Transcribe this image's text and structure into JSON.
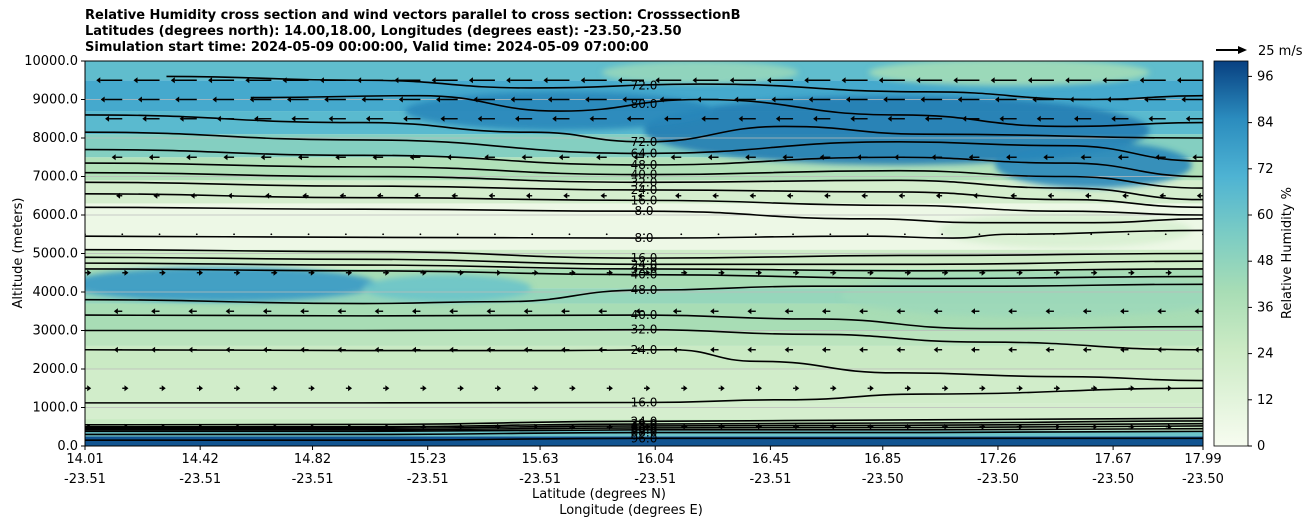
{
  "chart_data": {
    "type": "heatmap",
    "title_lines": [
      "Relative Humidity cross section and wind vectors parallel to cross section: CrosssectionB",
      "Latitudes (degrees north): 14.00,18.00, Longitudes (degrees east): -23.50,-23.50",
      "Simulation start time: 2024-05-09 00:00:00, Valid time: 2024-05-09 07:00:00"
    ],
    "xlabel_lat": "Latitude (degrees N)",
    "xlabel_lon": "Longitude (degrees E)",
    "ylabel": "Altitude (meters)",
    "xlim": [
      14.01,
      17.99
    ],
    "ylim": [
      0,
      10000
    ],
    "x_ticks": [
      {
        "lat": "14.01",
        "lon": "-23.51",
        "x": 14.01
      },
      {
        "lat": "14.42",
        "lon": "-23.51",
        "x": 14.42
      },
      {
        "lat": "14.82",
        "lon": "-23.51",
        "x": 14.82
      },
      {
        "lat": "15.23",
        "lon": "-23.51",
        "x": 15.23
      },
      {
        "lat": "15.63",
        "lon": "-23.51",
        "x": 15.63
      },
      {
        "lat": "16.04",
        "lon": "-23.51",
        "x": 16.04
      },
      {
        "lat": "16.45",
        "lon": "-23.51",
        "x": 16.45
      },
      {
        "lat": "16.85",
        "lon": "-23.50",
        "x": 16.85
      },
      {
        "lat": "17.26",
        "lon": "-23.50",
        "x": 17.26
      },
      {
        "lat": "17.67",
        "lon": "-23.50",
        "x": 17.67
      },
      {
        "lat": "17.99",
        "lon": "-23.50",
        "x": 17.99
      }
    ],
    "y_ticks": [
      "0.0",
      "1000.0",
      "2000.0",
      "3000.0",
      "4000.0",
      "5000.0",
      "6000.0",
      "7000.0",
      "8000.0",
      "9000.0",
      "10000.0"
    ],
    "colorbar": {
      "label": "Relative Humidity %",
      "ticks": [
        "0",
        "12",
        "24",
        "36",
        "48",
        "60",
        "72",
        "84",
        "96"
      ],
      "min": 0,
      "max": 100
    },
    "wind_key": "25 m/s",
    "layers": [
      {
        "y0": 0,
        "y1": 250,
        "rh": 96
      },
      {
        "y0": 250,
        "y1": 400,
        "rh": 60
      },
      {
        "y0": 400,
        "y1": 700,
        "rh": 26
      },
      {
        "y0": 700,
        "y1": 1100,
        "rh": 20
      },
      {
        "y0": 1100,
        "y1": 2000,
        "rh": 22
      },
      {
        "y0": 2000,
        "y1": 2600,
        "rh": 26
      },
      {
        "y0": 2600,
        "y1": 3000,
        "rh": 32
      },
      {
        "y0": 3000,
        "y1": 3700,
        "rh": 40
      },
      {
        "y0": 3700,
        "y1": 4100,
        "rh": 46
      },
      {
        "y0": 4100,
        "y1": 4600,
        "rh": 40
      },
      {
        "y0": 4600,
        "y1": 5100,
        "rh": 24
      },
      {
        "y0": 5100,
        "y1": 6300,
        "rh": 6
      },
      {
        "y0": 6300,
        "y1": 6900,
        "rh": 20
      },
      {
        "y0": 6900,
        "y1": 7500,
        "rh": 36
      },
      {
        "y0": 7500,
        "y1": 8100,
        "rh": 52
      },
      {
        "y0": 8100,
        "y1": 8700,
        "rh": 66
      },
      {
        "y0": 8700,
        "y1": 9500,
        "rh": 74
      },
      {
        "y0": 9500,
        "y1": 10000,
        "rh": 64
      }
    ],
    "blobs": [
      {
        "x": 14.5,
        "y": 4200,
        "rx": 0.55,
        "ry": 450,
        "rh": 80
      },
      {
        "x": 15.3,
        "y": 4100,
        "rx": 0.3,
        "ry": 350,
        "rh": 60
      },
      {
        "x": 16.9,
        "y": 8200,
        "rx": 0.9,
        "ry": 900,
        "rh": 88
      },
      {
        "x": 15.7,
        "y": 8700,
        "rx": 0.55,
        "ry": 500,
        "rh": 86
      },
      {
        "x": 17.6,
        "y": 7300,
        "rx": 0.35,
        "ry": 600,
        "rh": 86
      },
      {
        "x": 17.3,
        "y": 9700,
        "rx": 0.5,
        "ry": 350,
        "rh": 42
      },
      {
        "x": 16.2,
        "y": 9700,
        "rx": 0.35,
        "ry": 300,
        "rh": 46
      },
      {
        "x": 17.4,
        "y": 3900,
        "rx": 0.7,
        "ry": 550,
        "rh": 44
      },
      {
        "x": 17.5,
        "y": 5600,
        "rx": 0.45,
        "ry": 450,
        "rh": 18
      }
    ],
    "contours": [
      {
        "label": "16.0",
        "points": [
          [
            14.01,
            1120
          ],
          [
            15.0,
            1120
          ],
          [
            16.0,
            1130
          ],
          [
            16.5,
            1200
          ],
          [
            17.0,
            1350
          ],
          [
            17.99,
            1500
          ]
        ]
      },
      {
        "label": "24.0",
        "points": [
          [
            14.01,
            2500
          ],
          [
            15.0,
            2480
          ],
          [
            15.7,
            2480
          ],
          [
            16.1,
            2500
          ],
          [
            16.4,
            2200
          ],
          [
            16.9,
            1900
          ],
          [
            17.5,
            1800
          ],
          [
            17.99,
            1700
          ]
        ]
      },
      {
        "label": "32.0",
        "points": [
          [
            14.01,
            3000
          ],
          [
            15.0,
            3000
          ],
          [
            16.0,
            3020
          ],
          [
            16.6,
            2900
          ],
          [
            17.2,
            2700
          ],
          [
            17.99,
            2500
          ]
        ]
      },
      {
        "label": "40.0",
        "points": [
          [
            14.01,
            3400
          ],
          [
            15.0,
            3380
          ],
          [
            16.0,
            3400
          ],
          [
            16.6,
            3300
          ],
          [
            17.2,
            3050
          ],
          [
            17.99,
            3100
          ]
        ]
      },
      {
        "label": "48.0",
        "points": [
          [
            14.01,
            3800
          ],
          [
            15.0,
            3700
          ],
          [
            15.5,
            3750
          ],
          [
            16.0,
            4050
          ],
          [
            16.6,
            4150
          ],
          [
            17.2,
            4150
          ],
          [
            17.99,
            4200
          ]
        ]
      },
      {
        "label": "40.0",
        "points": [
          [
            14.01,
            4600
          ],
          [
            15.0,
            4550
          ],
          [
            16.0,
            4450
          ],
          [
            17.0,
            4350
          ],
          [
            17.99,
            4400
          ]
        ]
      },
      {
        "label": "32.0",
        "points": [
          [
            14.01,
            4750
          ],
          [
            15.0,
            4700
          ],
          [
            16.0,
            4600
          ],
          [
            17.0,
            4550
          ],
          [
            17.99,
            4600
          ]
        ]
      },
      {
        "label": "24.0",
        "points": [
          [
            14.01,
            4900
          ],
          [
            15.0,
            4850
          ],
          [
            16.0,
            4720
          ],
          [
            17.0,
            4720
          ],
          [
            17.99,
            4800
          ]
        ]
      },
      {
        "label": "16.0",
        "points": [
          [
            14.01,
            5100
          ],
          [
            15.0,
            5050
          ],
          [
            16.0,
            4880
          ],
          [
            17.0,
            4950
          ],
          [
            17.99,
            5000
          ]
        ]
      },
      {
        "label": "8.0",
        "points": [
          [
            14.01,
            5450
          ],
          [
            15.0,
            5420
          ],
          [
            16.0,
            5400
          ],
          [
            16.8,
            5450
          ],
          [
            17.1,
            5400
          ],
          [
            17.3,
            5500
          ],
          [
            17.99,
            5600
          ]
        ]
      },
      {
        "label": "8.0",
        "points": [
          [
            14.01,
            6200
          ],
          [
            15.0,
            6150
          ],
          [
            16.0,
            6100
          ],
          [
            16.8,
            5900
          ],
          [
            17.2,
            5800
          ],
          [
            17.6,
            5800
          ],
          [
            17.99,
            5900
          ]
        ]
      },
      {
        "label": "16.0",
        "points": [
          [
            14.01,
            6550
          ],
          [
            15.0,
            6450
          ],
          [
            16.0,
            6380
          ],
          [
            16.9,
            6250
          ],
          [
            17.5,
            6100
          ],
          [
            17.99,
            6000
          ]
        ]
      },
      {
        "label": "24.0",
        "points": [
          [
            14.01,
            6850
          ],
          [
            15.0,
            6750
          ],
          [
            16.0,
            6650
          ],
          [
            16.9,
            6600
          ],
          [
            17.5,
            6400
          ],
          [
            17.99,
            6200
          ]
        ]
      },
      {
        "label": "32.0",
        "points": [
          [
            14.01,
            7100
          ],
          [
            15.0,
            7000
          ],
          [
            16.0,
            6850
          ],
          [
            16.9,
            6900
          ],
          [
            17.5,
            6700
          ],
          [
            17.99,
            6400
          ]
        ]
      },
      {
        "label": "40.0",
        "points": [
          [
            14.01,
            7350
          ],
          [
            15.0,
            7250
          ],
          [
            16.0,
            7050
          ],
          [
            16.9,
            7150
          ],
          [
            17.5,
            7000
          ],
          [
            17.99,
            6700
          ]
        ]
      },
      {
        "label": "48.0",
        "points": [
          [
            14.01,
            7700
          ],
          [
            15.0,
            7550
          ],
          [
            16.0,
            7300
          ],
          [
            16.9,
            7500
          ],
          [
            17.5,
            7350
          ],
          [
            17.99,
            7000
          ]
        ]
      },
      {
        "label": "64.0",
        "points": [
          [
            14.01,
            8150
          ],
          [
            15.0,
            7950
          ],
          [
            16.0,
            7600
          ],
          [
            16.9,
            7900
          ],
          [
            17.5,
            7800
          ],
          [
            17.99,
            7400
          ]
        ]
      },
      {
        "label": "72.0",
        "points": [
          [
            14.01,
            8600
          ],
          [
            15.0,
            8400
          ],
          [
            15.6,
            8150
          ],
          [
            16.0,
            7900
          ],
          [
            16.5,
            8300
          ],
          [
            17.0,
            8100
          ],
          [
            17.99,
            8000
          ]
        ]
      },
      {
        "label": "80.0",
        "points": [
          [
            14.6,
            9050
          ],
          [
            15.2,
            9100
          ],
          [
            15.7,
            8700
          ],
          [
            16.2,
            9000
          ],
          [
            16.9,
            8600
          ],
          [
            17.5,
            8300
          ],
          [
            17.99,
            8400
          ]
        ]
      },
      {
        "label": "72.0",
        "points": [
          [
            14.3,
            9600
          ],
          [
            15.0,
            9500
          ],
          [
            15.6,
            9300
          ],
          [
            16.2,
            9400
          ],
          [
            17.0,
            9200
          ],
          [
            17.6,
            9000
          ],
          [
            17.99,
            9100
          ]
        ]
      },
      {
        "label": "96.0",
        "points": [
          [
            14.01,
            150
          ],
          [
            15.0,
            150
          ],
          [
            16.0,
            200
          ],
          [
            17.0,
            200
          ],
          [
            17.99,
            200
          ]
        ]
      },
      {
        "label": "88.0",
        "points": [
          [
            14.01,
            300
          ],
          [
            15.0,
            300
          ],
          [
            16.0,
            350
          ],
          [
            17.0,
            350
          ],
          [
            17.99,
            380
          ]
        ]
      },
      {
        "label": "80.0",
        "points": [
          [
            14.01,
            380
          ],
          [
            15.0,
            380
          ],
          [
            16.0,
            420
          ],
          [
            17.0,
            420
          ],
          [
            17.99,
            450
          ]
        ]
      },
      {
        "label": "64.0",
        "points": [
          [
            14.01,
            420
          ],
          [
            15.0,
            420
          ],
          [
            16.0,
            470
          ],
          [
            17.0,
            480
          ],
          [
            17.99,
            520
          ]
        ]
      },
      {
        "label": "48.0",
        "points": [
          [
            14.01,
            460
          ],
          [
            15.0,
            460
          ],
          [
            16.0,
            520
          ],
          [
            17.0,
            540
          ],
          [
            17.99,
            580
          ]
        ]
      },
      {
        "label": "32.0",
        "points": [
          [
            14.01,
            500
          ],
          [
            15.0,
            500
          ],
          [
            16.0,
            570
          ],
          [
            17.0,
            600
          ],
          [
            17.99,
            650
          ]
        ]
      },
      {
        "label": "24.0",
        "points": [
          [
            14.01,
            550
          ],
          [
            15.0,
            560
          ],
          [
            16.0,
            640
          ],
          [
            17.0,
            680
          ],
          [
            17.99,
            720
          ]
        ]
      }
    ],
    "wind_levels": [
      {
        "y": 9500,
        "u": -10
      },
      {
        "y": 9000,
        "u": -8
      },
      {
        "y": 8500,
        "u": -6
      },
      {
        "y": 7500,
        "u": -3
      },
      {
        "y": 6500,
        "u": -1
      },
      {
        "y": 5500,
        "u": 0
      },
      {
        "y": 4500,
        "u": 1
      },
      {
        "y": 3500,
        "u": -2
      },
      {
        "y": 2500,
        "u": -2
      },
      {
        "y": 1500,
        "u": 1
      },
      {
        "y": 500,
        "u": 1
      }
    ]
  }
}
